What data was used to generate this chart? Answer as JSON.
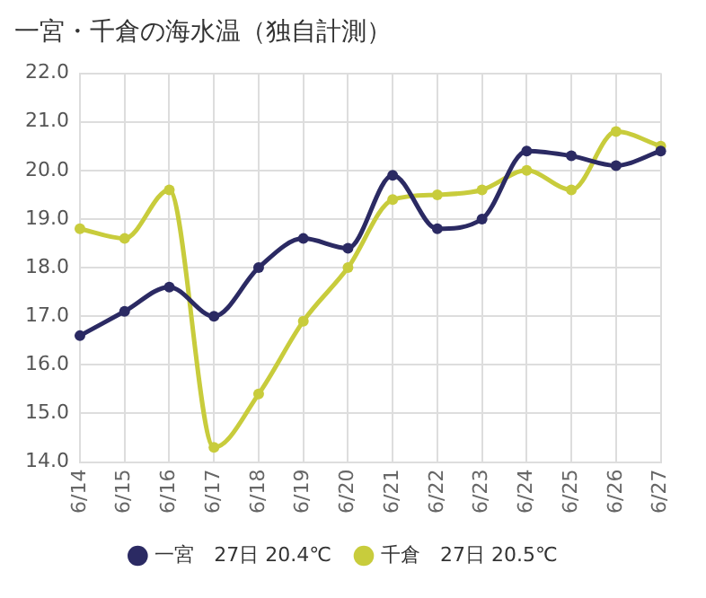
{
  "chart_data": {
    "type": "line",
    "title": "一宮・千倉の海水温（独自計測）",
    "categories": [
      "6/14",
      "6/15",
      "6/16",
      "6/17",
      "6/18",
      "6/19",
      "6/20",
      "6/21",
      "6/22",
      "6/23",
      "6/24",
      "6/25",
      "6/26",
      "6/27"
    ],
    "series": [
      {
        "name": "一宮　27日 20.4℃",
        "color": "#2b2a63",
        "values": [
          16.6,
          17.1,
          17.6,
          17.0,
          18.0,
          18.6,
          18.4,
          19.9,
          18.8,
          19.0,
          20.4,
          20.3,
          20.1,
          20.4
        ]
      },
      {
        "name": "千倉　27日 20.5℃",
        "color": "#c8cc3c",
        "values": [
          18.8,
          18.6,
          19.6,
          14.3,
          15.4,
          16.9,
          18.0,
          19.4,
          19.5,
          19.6,
          20.0,
          19.6,
          20.8,
          20.5
        ]
      }
    ],
    "ylim": [
      14,
      22
    ],
    "yticks": [
      {
        "value": 14,
        "label": "14.0"
      },
      {
        "value": 15,
        "label": "15.0"
      },
      {
        "value": 16,
        "label": "16.0"
      },
      {
        "value": 17,
        "label": "17.0"
      },
      {
        "value": 18,
        "label": "18.0"
      },
      {
        "value": 19,
        "label": "19.0"
      },
      {
        "value": 20,
        "label": "20.0"
      },
      {
        "value": 21,
        "label": "21.0"
      },
      {
        "value": 22,
        "label": "22.0"
      }
    ],
    "grid": true,
    "legend": "bottom",
    "marker": "circle",
    "line_style": "solid"
  }
}
